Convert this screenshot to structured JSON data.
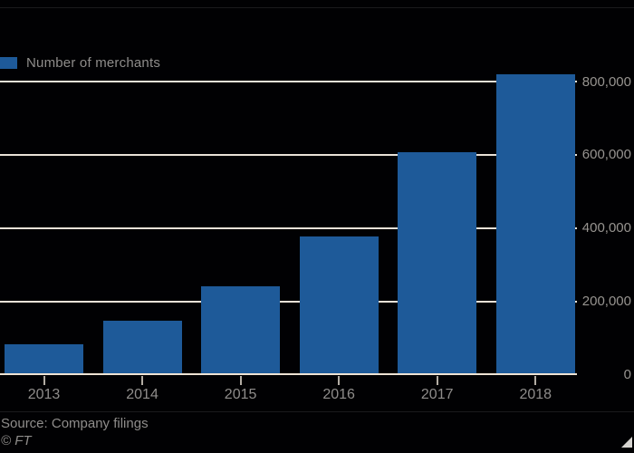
{
  "chart": {
    "legend": {
      "label": "Number of merchants"
    },
    "source": "Source: Company filings",
    "credit": "© FT",
    "colors": {
      "background": "#010103",
      "bar": "#1e5a99",
      "gridline": "#e9e2d8",
      "axis_line": "#eee3d4",
      "tick": "#b3ada4",
      "axis_text": "#979490",
      "label_text": "#8f8d8b",
      "corner_triangle": "#d6d4d0"
    }
  },
  "chart_data": {
    "type": "bar",
    "title": "",
    "categories": [
      "2013",
      "2014",
      "2015",
      "2016",
      "2017",
      "2018"
    ],
    "values": [
      84000,
      148000,
      241000,
      377000,
      607000,
      820000
    ],
    "series_name": "Number of merchants",
    "xlabel": "",
    "ylabel": "",
    "ylim": [
      0,
      840000
    ],
    "yticks": [
      0,
      200000,
      400000,
      600000,
      800000
    ],
    "ytick_labels": [
      "0",
      "200,000",
      "400,000",
      "600,000",
      "800,000"
    ],
    "y_axis_side": "right",
    "grid": true,
    "gridlines_behind_bars": true,
    "legend_position": "top-left",
    "background": "dark"
  }
}
